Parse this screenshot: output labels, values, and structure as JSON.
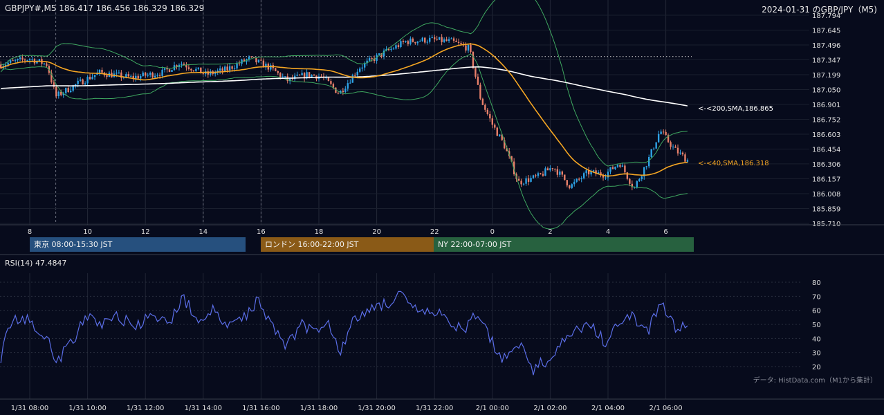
{
  "header": {
    "symbol_quote": "GBPJPY#,M5 186.417 186.456 186.329 186.329",
    "date_title": "2024-01-31 のGBP/JPY（M5)"
  },
  "sessions": [
    {
      "label": "東京 08:00-15:30 JST",
      "color": "#26507e"
    },
    {
      "label": "ロンドン 16:00-22:00 JST",
      "color": "#8a5a17"
    },
    {
      "label": "NY 22:00-07:00 JST",
      "color": "#27613f"
    }
  ],
  "rsi_label": "RSI(14) 47.4847",
  "credit": "データ: HistData.com（M1から集計）",
  "colors": {
    "background": "#070b1c",
    "bull_candle": "#2ea3e6",
    "bear_candle": "#e8806a",
    "sma40": "#f5a623",
    "sma200": "#ffffff",
    "bollinger": "#3fa860",
    "rsi": "#5b6ee8"
  },
  "chart_data": [
    {
      "type": "candlestick",
      "title": "GBPJPY#,M5",
      "y_ticks": [
        "187.794",
        "187.645",
        "187.496",
        "187.347",
        "187.199",
        "187.050",
        "186.901",
        "186.752",
        "186.603",
        "186.454",
        "186.306",
        "186.157",
        "186.008",
        "185.859",
        "185.710"
      ],
      "ylim": [
        185.71,
        187.794
      ],
      "x_ticks": [
        "8",
        "10",
        "12",
        "14",
        "16",
        "18",
        "20",
        "22",
        "0",
        "2",
        "4",
        "6"
      ],
      "reference_level": 187.38,
      "key_path_hours": [
        7,
        8,
        8.6,
        8.9,
        9.6,
        10.4,
        11.5,
        12.6,
        13.2,
        14.1,
        14.8,
        15.6,
        16.3,
        16.9,
        17.6,
        18.1,
        18.7,
        19.4,
        20.2,
        21.0,
        21.8,
        22.6,
        23.2,
        23.6,
        24.0,
        24.4,
        24.9,
        25.6,
        26.1,
        26.7,
        27.3,
        27.9,
        28.4,
        28.9,
        29.4,
        29.8,
        30.3,
        30.8
      ],
      "key_path_prices": [
        187.3,
        187.36,
        187.3,
        186.98,
        187.1,
        187.22,
        187.17,
        187.22,
        187.32,
        187.2,
        187.25,
        187.36,
        187.27,
        187.14,
        187.2,
        187.18,
        187.01,
        187.27,
        187.41,
        187.53,
        187.55,
        187.53,
        187.46,
        186.95,
        186.7,
        186.5,
        186.12,
        186.18,
        186.28,
        186.08,
        186.22,
        186.2,
        186.32,
        186.06,
        186.35,
        186.64,
        186.45,
        186.33
      ],
      "annotations": [
        {
          "label": "<-<200,SMA,186.865",
          "value": 186.865,
          "color": "#ffffff"
        },
        {
          "label": "<-<40,SMA,186.318",
          "value": 186.318,
          "color": "#f5a623"
        }
      ],
      "series": [
        {
          "name": "SMA 200"
        },
        {
          "name": "SMA 40"
        },
        {
          "name": "Bollinger Bands"
        }
      ]
    },
    {
      "type": "line",
      "title": "RSI(14) 47.4847",
      "y_ticks": [
        "80",
        "70",
        "60",
        "50",
        "40",
        "30",
        "20"
      ],
      "ylim": [
        20,
        80
      ],
      "x_ticks": [
        "1/31 08:00",
        "1/31 10:00",
        "1/31 12:00",
        "1/31 14:00",
        "1/31 16:00",
        "1/31 18:00",
        "1/31 20:00",
        "1/31 22:00",
        "2/1 00:00",
        "2/1 02:00",
        "2/1 04:00",
        "2/1 06:00"
      ],
      "path_hours": [
        7,
        7.3,
        7.8,
        8.6,
        8.9,
        9.5,
        10,
        10.5,
        11,
        11.6,
        12.2,
        12.8,
        13.3,
        13.8,
        14.3,
        14.8,
        15.4,
        15.9,
        16.3,
        16.9,
        17.4,
        17.9,
        18.3,
        18.7,
        19.2,
        19.8,
        20.3,
        20.8,
        21.3,
        21.9,
        22.4,
        23,
        23.5,
        23.9,
        24.3,
        24.9,
        25.4,
        25.9,
        26.4,
        26.9,
        27.4,
        27.9,
        28.4,
        28.9,
        29.4,
        29.8,
        30.3,
        30.8
      ],
      "path_values": [
        27,
        50,
        55,
        42,
        22,
        40,
        55,
        50,
        57,
        48,
        55,
        50,
        70,
        52,
        60,
        48,
        55,
        68,
        52,
        35,
        50,
        45,
        55,
        30,
        52,
        62,
        65,
        70,
        60,
        58,
        55,
        45,
        58,
        42,
        25,
        38,
        18,
        25,
        36,
        46,
        48,
        38,
        52,
        55,
        45,
        65,
        48,
        52
      ]
    }
  ]
}
